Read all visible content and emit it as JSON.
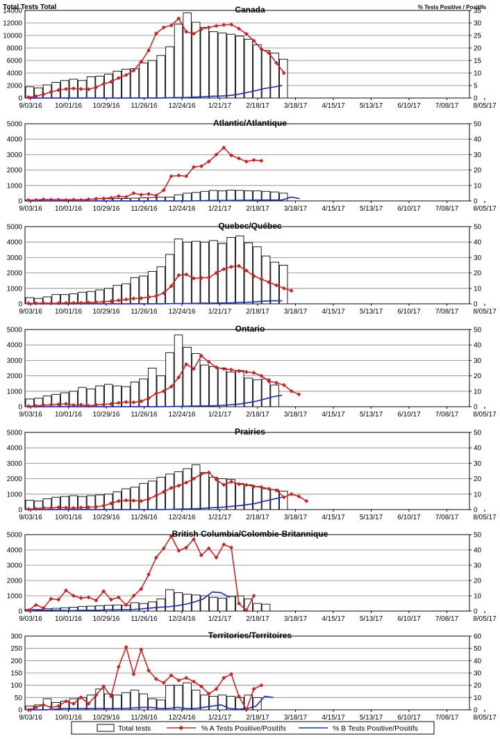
{
  "header": {
    "left_axis_title": "Total Tests  Total",
    "right_axis_title": "% Tests Positive / Positifs"
  },
  "x_tick_labels": [
    "9/03/16",
    "10/01/16",
    "10/29/16",
    "11/26/16",
    "12/24/16",
    "1/21/17",
    "2/18/17",
    "3/18/17",
    "4/15/17",
    "5/13/17",
    "6/10/17",
    "7/08/17",
    "8/05/17"
  ],
  "legend": {
    "total": "Total tests",
    "a": "% A Tests Positive/Positifs",
    "b": "% B Tests Positive/Positifs"
  },
  "colors": {
    "bars": "#000000",
    "series_a": "#cc2222",
    "series_b": "#1f2fbf",
    "grid": "#7f7f7f"
  },
  "chart_data": [
    {
      "type": "bar",
      "title": "Canada",
      "weeks": 52,
      "ylim_left": [
        0,
        14000
      ],
      "yticks_left": [
        0,
        2000,
        4000,
        6000,
        8000,
        10000,
        12000,
        14000
      ],
      "ylim_right": [
        0,
        35
      ],
      "yticks_right": [
        0,
        5,
        10,
        15,
        20,
        25,
        30,
        35
      ],
      "series": [
        {
          "name": "Total tests",
          "kind": "bar",
          "axis": "left",
          "values": [
            1800,
            1600,
            2100,
            2500,
            2800,
            3000,
            2800,
            3400,
            3500,
            3800,
            4300,
            4600,
            4700,
            5600,
            6000,
            6800,
            8200,
            11800,
            13600,
            12100,
            11300,
            10600,
            10400,
            10200,
            9900,
            9400,
            8500,
            7600,
            7200,
            6200
          ]
        },
        {
          "name": "% A Tests Positive/Positifs",
          "kind": "line",
          "axis": "right",
          "values": [
            0.3,
            0.7,
            1.5,
            2.4,
            3.2,
            3.6,
            3.8,
            3.6,
            3.5,
            4.3,
            5.6,
            6.5,
            8.0,
            9.2,
            11.0,
            14.5,
            19.0,
            25.8,
            28.2,
            29.0,
            31.8,
            26.5,
            25.7,
            27.5,
            28.2,
            28.8,
            29.2,
            29.4,
            27.7,
            25.6,
            22.9,
            19.5,
            18.0,
            14.0,
            10.0
          ]
        },
        {
          "name": "% B Tests Positive/Positifs",
          "kind": "line",
          "axis": "right",
          "values": [
            0,
            0,
            0,
            0,
            0,
            0,
            0,
            0,
            0,
            0,
            0,
            0,
            0,
            0,
            0,
            0,
            0.1,
            0.2,
            0.2,
            0.4,
            0.5,
            0.7,
            0.8,
            1.0,
            1.5,
            2.2,
            3.0,
            3.8,
            4.4,
            5.0
          ]
        }
      ]
    },
    {
      "type": "bar",
      "title": "Atlantic/Atlantique",
      "weeks": 52,
      "ylim_left": [
        0,
        5000
      ],
      "yticks_left": [
        0,
        1000,
        2000,
        3000,
        4000,
        5000
      ],
      "ylim_right": [
        0,
        50
      ],
      "yticks_right": [
        0,
        10,
        20,
        30,
        40,
        50
      ],
      "series": [
        {
          "name": "Total tests",
          "kind": "bar",
          "axis": "left",
          "values": [
            60,
            60,
            80,
            80,
            90,
            90,
            90,
            120,
            130,
            140,
            150,
            160,
            180,
            200,
            220,
            240,
            250,
            400,
            500,
            550,
            620,
            680,
            650,
            700,
            680,
            650,
            650,
            620,
            580,
            500
          ]
        },
        {
          "name": "% A Tests Positive/Positifs",
          "kind": "line",
          "axis": "right",
          "values": [
            0.5,
            0.6,
            1.0,
            0.8,
            0.8,
            0.6,
            0.7,
            0.6,
            1.0,
            1.4,
            1.6,
            2.0,
            3.0,
            2.5,
            5.0,
            4.0,
            4.5,
            3.5,
            7.0,
            16.0,
            16.5,
            16.0,
            22.0,
            22.5,
            25.5,
            30.0,
            34.5,
            29.5,
            27.5,
            25.5,
            26.5,
            26.0
          ]
        },
        {
          "name": "% B Tests Positive/Positifs",
          "kind": "line",
          "axis": "right",
          "values": [
            0,
            0,
            0,
            0,
            0,
            0,
            0,
            0,
            0,
            0,
            0,
            0,
            0,
            0,
            0,
            0,
            0,
            0,
            0,
            0.1,
            0.2,
            0.3,
            0.3,
            0.3,
            0.4,
            0.4,
            0.5,
            0.6,
            0.6,
            0.6,
            2.5,
            1.5
          ]
        }
      ]
    },
    {
      "type": "bar",
      "title": "Quebec/Québec",
      "weeks": 52,
      "ylim_left": [
        0,
        5000
      ],
      "yticks_left": [
        0,
        1000,
        2000,
        3000,
        4000,
        5000
      ],
      "ylim_right": [
        0,
        50
      ],
      "yticks_right": [
        0,
        10,
        20,
        30,
        40,
        50
      ],
      "series": [
        {
          "name": "Total tests",
          "kind": "bar",
          "axis": "left",
          "values": [
            400,
            350,
            450,
            600,
            600,
            650,
            750,
            800,
            900,
            1000,
            1200,
            1300,
            1700,
            1800,
            2100,
            2400,
            3200,
            4200,
            4000,
            4050,
            4000,
            4100,
            3900,
            4300,
            4400,
            3950,
            3700,
            3100,
            2700,
            2500
          ]
        },
        {
          "name": "% A Tests Positive/Positifs",
          "kind": "line",
          "axis": "right",
          "values": [
            0.3,
            0.3,
            0.5,
            0.3,
            0.4,
            0.5,
            0.6,
            0.6,
            0.8,
            1.0,
            1.3,
            1.6,
            2.2,
            2.8,
            3.4,
            3.6,
            4.4,
            5.0,
            7.0,
            11.5,
            18.5,
            19.0,
            16.5,
            16.8,
            17.0,
            20.0,
            22.5,
            24.0,
            24.5,
            21.5,
            18.0,
            16.0,
            14.0,
            12.0,
            10.0,
            8.5
          ]
        },
        {
          "name": "% B Tests Positive/Positifs",
          "kind": "line",
          "axis": "right",
          "values": [
            0,
            0,
            0,
            0,
            0,
            0,
            0,
            0,
            0,
            0,
            0,
            0,
            0,
            0,
            0,
            0,
            0.1,
            0.2,
            0.2,
            0.3,
            0.4,
            0.4,
            0.5,
            0.6,
            0.8,
            1.0,
            1.3,
            1.8,
            2.0,
            2.0
          ]
        }
      ]
    },
    {
      "type": "bar",
      "title": "Ontario",
      "weeks": 52,
      "ylim_left": [
        0,
        5000
      ],
      "yticks_left": [
        0,
        1000,
        2000,
        3000,
        4000,
        5000
      ],
      "ylim_right": [
        0,
        50
      ],
      "yticks_right": [
        0,
        10,
        20,
        30,
        40,
        50
      ],
      "series": [
        {
          "name": "Total tests",
          "kind": "bar",
          "axis": "left",
          "values": [
            500,
            550,
            700,
            800,
            900,
            1000,
            1250,
            1150,
            1350,
            1450,
            1350,
            1300,
            1600,
            1800,
            2500,
            2000,
            3500,
            4650,
            3850,
            3450,
            2700,
            2600,
            2500,
            2250,
            2350,
            1850,
            1750,
            1800,
            1400
          ]
        },
        {
          "name": "% A Tests Positive/Positifs",
          "kind": "line",
          "axis": "right",
          "values": [
            0.3,
            0.5,
            1.0,
            1.2,
            1.5,
            1.8,
            1.0,
            1.2,
            0.5,
            1.2,
            1.5,
            1.8,
            2.5,
            3.0,
            2.8,
            3.5,
            5.5,
            8.5,
            10.0,
            13.0,
            19.0,
            27.5,
            24.5,
            33.0,
            29.0,
            25.5,
            24.5,
            24.0,
            23.0,
            22.5,
            22.0,
            20.0,
            16.5,
            15.5,
            14.0,
            10.0,
            8.0
          ]
        },
        {
          "name": "% B Tests Positive/Positifs",
          "kind": "line",
          "axis": "right",
          "values": [
            0,
            0,
            0,
            0,
            0,
            0,
            0,
            0,
            0,
            0,
            0,
            0,
            0,
            0,
            0,
            0,
            0.1,
            0.2,
            0.3,
            0.4,
            0.5,
            0.6,
            0.8,
            1.2,
            1.6,
            2.5,
            3.5,
            5.0,
            6.5,
            7.5
          ]
        }
      ]
    },
    {
      "type": "bar",
      "title": "Prairies",
      "weeks": 52,
      "ylim_left": [
        0,
        5000
      ],
      "yticks_left": [
        0,
        1000,
        2000,
        3000,
        4000,
        5000
      ],
      "ylim_right": [
        0,
        50
      ],
      "yticks_right": [
        0,
        10,
        20,
        30,
        40,
        50
      ],
      "series": [
        {
          "name": "Total tests",
          "kind": "bar",
          "axis": "left",
          "values": [
            600,
            550,
            700,
            800,
            850,
            900,
            850,
            900,
            950,
            1000,
            1150,
            1350,
            1450,
            1700,
            1850,
            2100,
            2300,
            2450,
            2650,
            2900,
            2400,
            2100,
            2000,
            1950,
            1700,
            1600,
            1500,
            1350,
            1300,
            1200
          ]
        },
        {
          "name": "% A Tests Positive/Positifs",
          "kind": "line",
          "axis": "right",
          "values": [
            0.3,
            0.5,
            1.2,
            1.0,
            1.5,
            1.2,
            1.0,
            1.3,
            1.5,
            1.8,
            2.5,
            4.0,
            5.5,
            6.0,
            5.8,
            5.5,
            7.0,
            9.0,
            11.5,
            14.0,
            15.5,
            17.5,
            20.0,
            23.0,
            24.0,
            19.5,
            16.0,
            18.0,
            16.5,
            16.0,
            15.0,
            14.5,
            13.5,
            12.5,
            8.0,
            10.0,
            8.5,
            5.5
          ]
        },
        {
          "name": "% B Tests Positive/Positifs",
          "kind": "line",
          "axis": "right",
          "values": [
            0,
            0,
            0,
            0,
            0,
            0,
            0,
            0,
            0,
            0,
            0,
            0,
            0,
            0,
            0,
            0,
            0.1,
            0.3,
            0.4,
            0.5,
            0.8,
            1.2,
            1.5,
            2.0,
            2.5,
            3.2,
            4.0,
            5.5,
            6.8,
            8.0
          ]
        }
      ]
    },
    {
      "type": "bar",
      "title": "British Columbia/Colombie-Britannique",
      "weeks": 52,
      "ylim_left": [
        0,
        5000
      ],
      "yticks_left": [
        0,
        1000,
        2000,
        3000,
        4000,
        5000
      ],
      "ylim_right": [
        0,
        50
      ],
      "yticks_right": [
        0,
        10,
        20,
        30,
        40,
        50
      ],
      "series": [
        {
          "name": "Total tests",
          "kind": "bar",
          "axis": "left",
          "values": [
            100,
            100,
            150,
            180,
            220,
            250,
            300,
            320,
            350,
            380,
            400,
            380,
            550,
            500,
            600,
            800,
            1400,
            1200,
            1100,
            1050,
            1000,
            900,
            850,
            950,
            1000,
            800,
            500,
            450
          ]
        },
        {
          "name": "% A Tests Positive/Positifs",
          "kind": "line",
          "axis": "right",
          "values": [
            0.5,
            4.0,
            2.0,
            8.0,
            7.5,
            13.5,
            10.0,
            8.5,
            9.0,
            7.0,
            13.0,
            7.5,
            9.0,
            4.0,
            10.0,
            14.5,
            24.0,
            35.0,
            41.0,
            49.0,
            39.5,
            41.5,
            47.0,
            36.5,
            41.0,
            35.0,
            43.5,
            41.5,
            5.0,
            0.5,
            10.0
          ]
        },
        {
          "name": "% B Tests Positive/Positifs",
          "kind": "line",
          "axis": "right",
          "values": [
            0,
            0.5,
            0.5,
            0.5,
            0.4,
            0.3,
            0.5,
            0.5,
            0.6,
            0.8,
            0.8,
            0.9,
            1.0,
            1.5,
            2.0,
            2.5,
            2.8,
            3.5,
            4.5,
            6.0,
            8.0,
            12.5,
            12.0,
            9.0
          ]
        }
      ]
    },
    {
      "type": "bar",
      "title": "Territories/Territoires",
      "weeks": 52,
      "ylim_left": [
        0,
        300
      ],
      "yticks_left": [
        0,
        50,
        100,
        150,
        200,
        250,
        300
      ],
      "ylim_right": [
        0,
        60
      ],
      "yticks_right": [
        0,
        10,
        20,
        30,
        40,
        50,
        60
      ],
      "series": [
        {
          "name": "Total tests",
          "kind": "bar",
          "axis": "left",
          "values": [
            15,
            20,
            45,
            30,
            35,
            45,
            50,
            60,
            85,
            65,
            60,
            70,
            80,
            65,
            45,
            40,
            100,
            100,
            110,
            80,
            60,
            55,
            60,
            55,
            50,
            60,
            50
          ]
        },
        {
          "name": "% A Tests Positive/Positifs",
          "kind": "line",
          "axis": "right",
          "values": [
            0,
            2,
            4,
            2,
            3,
            7,
            5,
            10,
            5,
            12,
            19,
            11,
            35,
            51,
            29,
            49,
            32,
            25,
            22,
            28,
            24,
            26,
            23,
            19,
            13,
            17,
            26,
            29,
            11,
            0,
            17,
            20
          ]
        },
        {
          "name": "% B Tests Positive/Positifs",
          "kind": "line",
          "axis": "right",
          "values": [
            0,
            0,
            0,
            0.5,
            1,
            1,
            1,
            1,
            1,
            1,
            1,
            1,
            1.5,
            2,
            2,
            1,
            1,
            2,
            1,
            1,
            2,
            3,
            4,
            1,
            0.5,
            1,
            3,
            11,
            10
          ]
        }
      ]
    }
  ]
}
